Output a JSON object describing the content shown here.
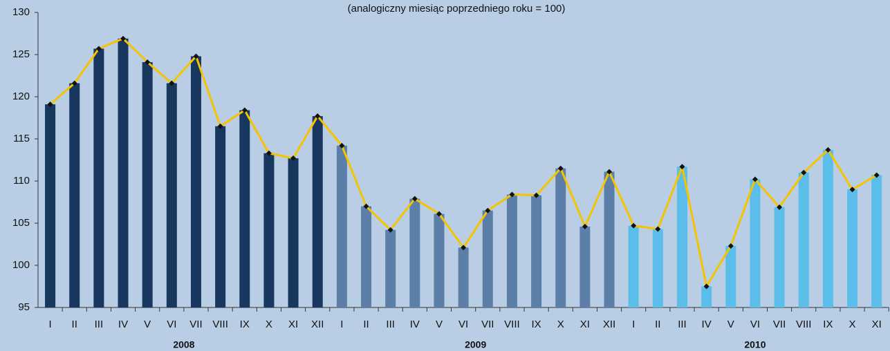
{
  "chart_data": {
    "type": "bar",
    "subtitle": "(analogiczny miesiąc poprzedniego roku = 100)",
    "ylim": [
      95,
      130
    ],
    "yticks": [
      95,
      100,
      105,
      110,
      115,
      120,
      125,
      130
    ],
    "line_color": "#f5c400",
    "marker_color": "#111111",
    "groups": [
      {
        "name": "2008",
        "color": "#17375e",
        "categories": [
          "I",
          "II",
          "III",
          "IV",
          "V",
          "VI",
          "VII",
          "VIII",
          "IX",
          "X",
          "XI",
          "XII"
        ],
        "values": [
          119.1,
          121.6,
          125.7,
          126.9,
          124.1,
          121.6,
          124.8,
          116.5,
          118.4,
          113.3,
          112.7,
          117.7
        ]
      },
      {
        "name": "2009",
        "color": "#5b7fa8",
        "categories": [
          "I",
          "II",
          "III",
          "IV",
          "V",
          "VI",
          "VII",
          "VIII",
          "IX",
          "X",
          "XI",
          "XII"
        ],
        "values": [
          114.2,
          107.0,
          104.2,
          107.9,
          106.1,
          102.1,
          106.5,
          108.4,
          108.3,
          111.5,
          104.6,
          111.1
        ]
      },
      {
        "name": "2010",
        "color": "#5bbdea",
        "categories": [
          "I",
          "II",
          "III",
          "IV",
          "V",
          "VI",
          "VII",
          "VIII",
          "IX",
          "X",
          "XI"
        ],
        "values": [
          104.7,
          104.3,
          111.7,
          97.5,
          102.3,
          110.2,
          106.9,
          111.0,
          113.7,
          109.0,
          110.7
        ]
      }
    ]
  }
}
